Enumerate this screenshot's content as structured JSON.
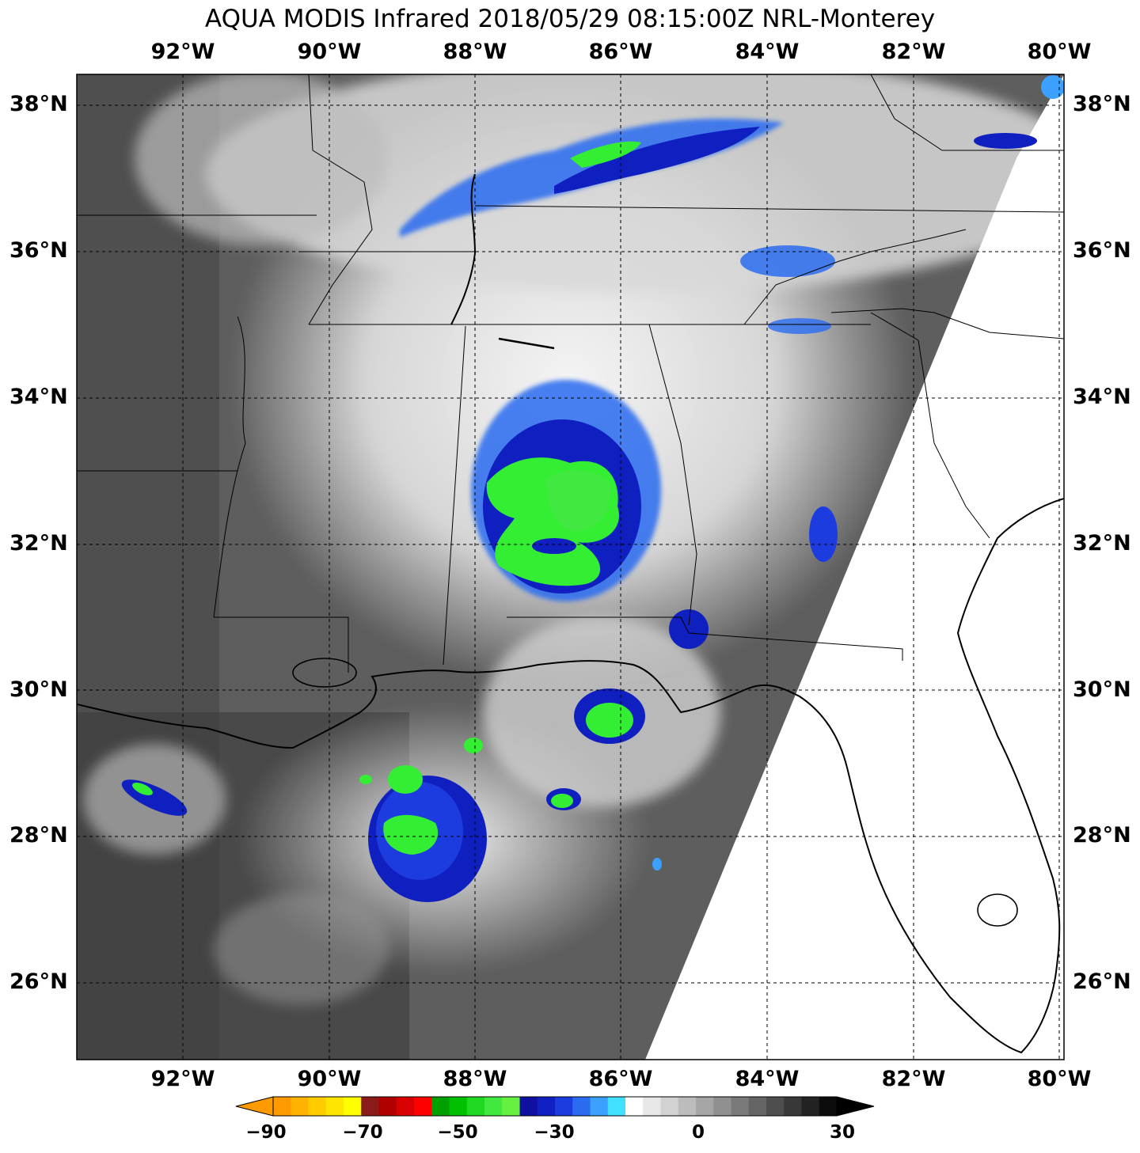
{
  "title": "AQUA MODIS Infrared 2018/05/29 08:15:00Z NRL-Monterey",
  "longitude_labels": [
    "92°W",
    "90°W",
    "88°W",
    "86°W",
    "84°W",
    "82°W",
    "80°W"
  ],
  "latitude_labels": [
    "38°N",
    "36°N",
    "34°N",
    "32°N",
    "30°N",
    "28°N",
    "26°N"
  ],
  "colorbar": {
    "ticks": [
      "−90",
      "−70",
      "−50",
      "−30",
      "0",
      "30"
    ],
    "colors": [
      "#ff9a00",
      "#ffb300",
      "#ffcc00",
      "#ffe600",
      "#ffff00",
      "#8b1a1a",
      "#b00000",
      "#d80000",
      "#ff0000",
      "#00a000",
      "#00c000",
      "#20d820",
      "#40e840",
      "#66f040",
      "#1010a0",
      "#1020c0",
      "#1c3ce0",
      "#2a6cf0",
      "#3ca0ff",
      "#40e0ff",
      "#ffffff",
      "#e8e8e8",
      "#d2d2d2",
      "#bcbcbc",
      "#a6a6a6",
      "#909090",
      "#7a7a7a",
      "#646464",
      "#4e4e4e",
      "#383838",
      "#222222",
      "#0c0c0c"
    ]
  },
  "palette": {
    "land_background": "#5a5a5a",
    "no_data": "#ffffff",
    "cold_cloud_green": "#33ee33",
    "cold_cloud_blue": "#1020c0",
    "cyan": "#3cb4ff"
  }
}
